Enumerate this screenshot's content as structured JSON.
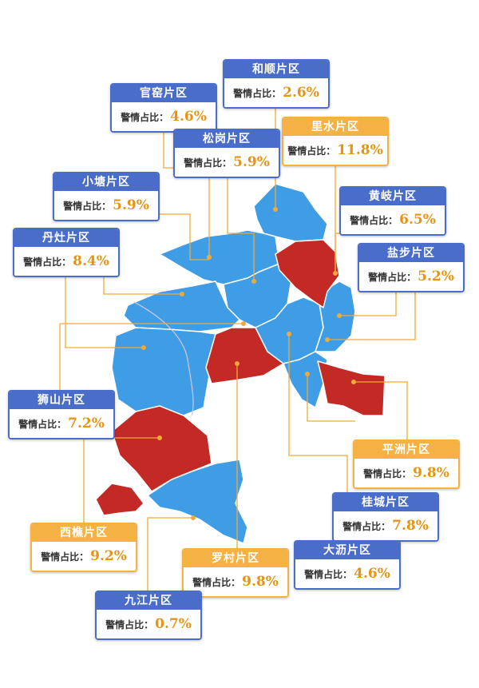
{
  "colors": {
    "low_region": "#3f9de6",
    "high_region": "#c42a25",
    "leader_line": "#f0a93a",
    "box_blue": "#4a6dc9",
    "box_orange": "#f4b244",
    "value_text": "#e59413"
  },
  "legend_label": "警情占比：",
  "districts": [
    {
      "key": "heshun",
      "name": "和顺片区",
      "value": "2.6%",
      "level": "low"
    },
    {
      "key": "guanyao",
      "name": "官窑片区",
      "value": "4.6%",
      "level": "low"
    },
    {
      "key": "lishui",
      "name": "里水片区",
      "value": "11.8%",
      "level": "high"
    },
    {
      "key": "songgang",
      "name": "松岗片区",
      "value": "5.9%",
      "level": "low"
    },
    {
      "key": "xiaotang",
      "name": "小塘片区",
      "value": "5.9%",
      "level": "low"
    },
    {
      "key": "huangqi",
      "name": "黄岐片区",
      "value": "6.5%",
      "level": "low"
    },
    {
      "key": "dandzao",
      "name": "丹灶片区",
      "value": "8.4%",
      "level": "low"
    },
    {
      "key": "yanbu",
      "name": "盐步片区",
      "value": "5.2%",
      "level": "low"
    },
    {
      "key": "shishan",
      "name": "狮山片区",
      "value": "7.2%",
      "level": "low"
    },
    {
      "key": "pingzhou",
      "name": "平洲片区",
      "value": "9.8%",
      "level": "high"
    },
    {
      "key": "guicheng",
      "name": "桂城片区",
      "value": "7.8%",
      "level": "low"
    },
    {
      "key": "xiqiao",
      "name": "西樵片区",
      "value": "9.2%",
      "level": "high"
    },
    {
      "key": "dali",
      "name": "大沥片区",
      "value": "4.6%",
      "level": "low"
    },
    {
      "key": "luocun",
      "name": "罗村片区",
      "value": "9.8%",
      "level": "high"
    },
    {
      "key": "jiujiang",
      "name": "九江片区",
      "value": "0.7%",
      "level": "low"
    }
  ]
}
